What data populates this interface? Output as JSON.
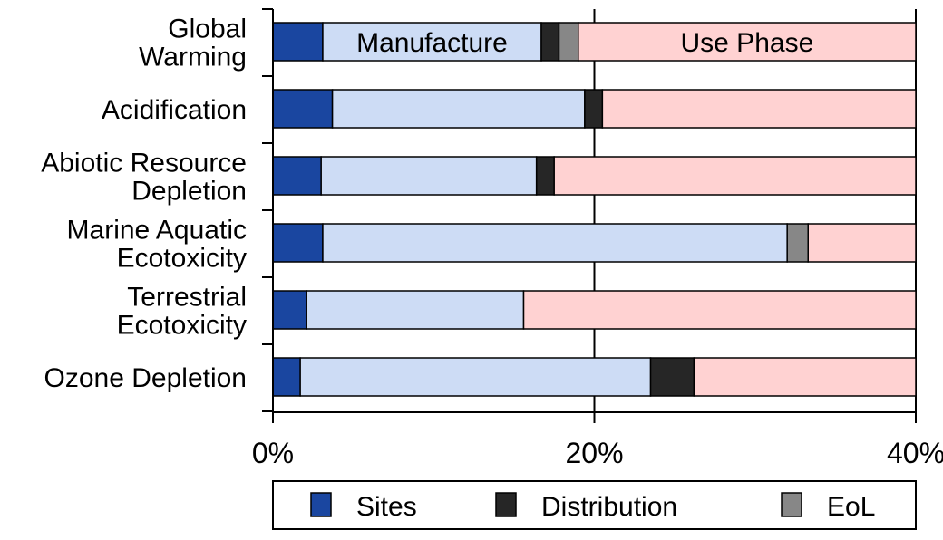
{
  "chart_data": {
    "type": "bar",
    "orientation": "horizontal",
    "stacked": true,
    "categories": [
      [
        "Global",
        "Warming"
      ],
      [
        "Acidification"
      ],
      [
        "Abiotic Resource",
        "Depletion"
      ],
      [
        "Marine Aquatic",
        "Ecotoxicity"
      ],
      [
        "Terrestrial",
        "Ecotoxicity"
      ],
      [
        "Ozone Depletion"
      ]
    ],
    "series": [
      {
        "name": "Sites",
        "color": "#1a46a0",
        "values": [
          3.1,
          3.7,
          3.0,
          3.1,
          2.1,
          1.7
        ]
      },
      {
        "name": "Manufacture",
        "color": "#cddcf5",
        "values": [
          13.6,
          15.7,
          13.4,
          28.9,
          13.5,
          21.8
        ]
      },
      {
        "name": "Distribution",
        "color": "#262626",
        "values": [
          1.1,
          1.1,
          1.1,
          0.0,
          0.0,
          2.7
        ]
      },
      {
        "name": "EoL",
        "color": "#878787",
        "values": [
          1.2,
          0.0,
          0.0,
          1.3,
          0.0,
          0.0
        ]
      },
      {
        "name": "Use Phase",
        "color": "#ffd2d2",
        "values": [
          21.0,
          19.5,
          22.5,
          6.7,
          24.4,
          13.8
        ]
      }
    ],
    "in_bar_labels": [
      {
        "series": "Manufacture",
        "category": 0,
        "text": "Manufacture"
      },
      {
        "series": "Use Phase",
        "category": 0,
        "text": "Use Phase"
      }
    ],
    "xlim": [
      0,
      40
    ],
    "xticks": [
      0,
      20,
      40
    ],
    "xtick_labels": [
      "0%",
      "20%",
      "40%"
    ],
    "grid": "vertical at 20%",
    "legend": {
      "placement": "bottom",
      "entries": [
        "Sites",
        "Distribution",
        "EoL"
      ]
    }
  }
}
